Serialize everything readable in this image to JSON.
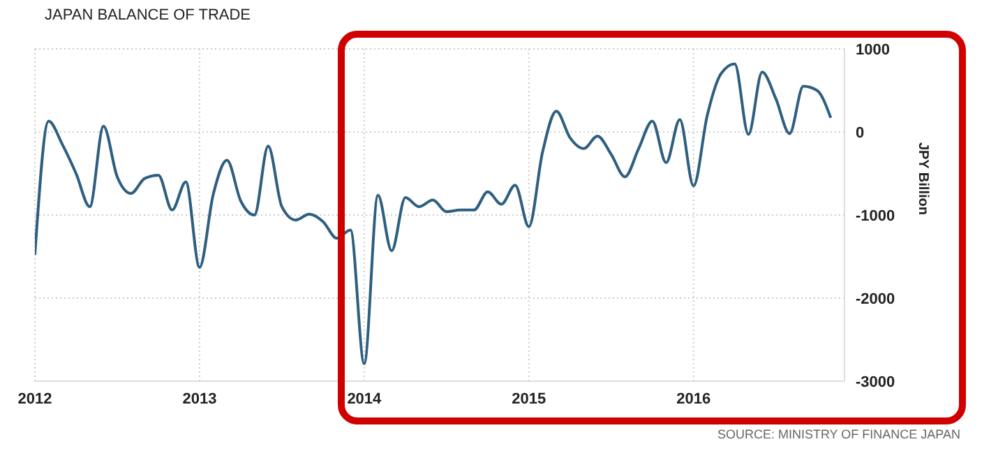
{
  "chart_data": {
    "type": "line",
    "title": "JAPAN BALANCE OF TRADE",
    "ylabel": "JPY Billion",
    "annotations": [
      "SOURCE: MINISTRY OF FINANCE JAPAN"
    ],
    "x": [
      "2012-01",
      "2012-02",
      "2012-03",
      "2012-04",
      "2012-05",
      "2012-06",
      "2012-07",
      "2012-08",
      "2012-09",
      "2012-10",
      "2012-11",
      "2012-12",
      "2013-01",
      "2013-02",
      "2013-03",
      "2013-04",
      "2013-05",
      "2013-06",
      "2013-07",
      "2013-08",
      "2013-09",
      "2013-10",
      "2013-11",
      "2013-12",
      "2014-01",
      "2014-02",
      "2014-03",
      "2014-04",
      "2014-05",
      "2014-06",
      "2014-07",
      "2014-08",
      "2014-09",
      "2014-10",
      "2014-11",
      "2014-12",
      "2015-01",
      "2015-02",
      "2015-03",
      "2015-04",
      "2015-05",
      "2015-06",
      "2015-07",
      "2015-08",
      "2015-09",
      "2015-10",
      "2015-11",
      "2015-12",
      "2016-01",
      "2016-02",
      "2016-03",
      "2016-04",
      "2016-05",
      "2016-06",
      "2016-07",
      "2016-08",
      "2016-09",
      "2016-10",
      "2016-11"
    ],
    "series": [
      {
        "color": "#2e5f80",
        "values": [
          -1480,
          130,
          -150,
          -500,
          -900,
          70,
          -540,
          -740,
          -560,
          -520,
          -940,
          -600,
          -1630,
          -750,
          -340,
          -830,
          -1000,
          -170,
          -900,
          -1060,
          -990,
          -1080,
          -1280,
          -1180,
          -2790,
          -760,
          -1430,
          -790,
          -900,
          -820,
          -960,
          -940,
          -940,
          -720,
          -870,
          -640,
          -1140,
          -240,
          250,
          -70,
          -200,
          -50,
          -270,
          -540,
          -200,
          130,
          -370,
          150,
          -650,
          200,
          700,
          820,
          -30,
          720,
          400,
          -20,
          550,
          500,
          170
        ]
      }
    ],
    "xlim": [
      "2012-01",
      "2016-12"
    ],
    "xticks": [
      "2012",
      "2013",
      "2014",
      "2015",
      "2016"
    ],
    "ylim": [
      -3000,
      1000
    ],
    "yticks": [
      -3000,
      -2000,
      -1000,
      0,
      1000
    ],
    "grid": true,
    "legend": false,
    "marker": "none",
    "line_style": "solid"
  }
}
